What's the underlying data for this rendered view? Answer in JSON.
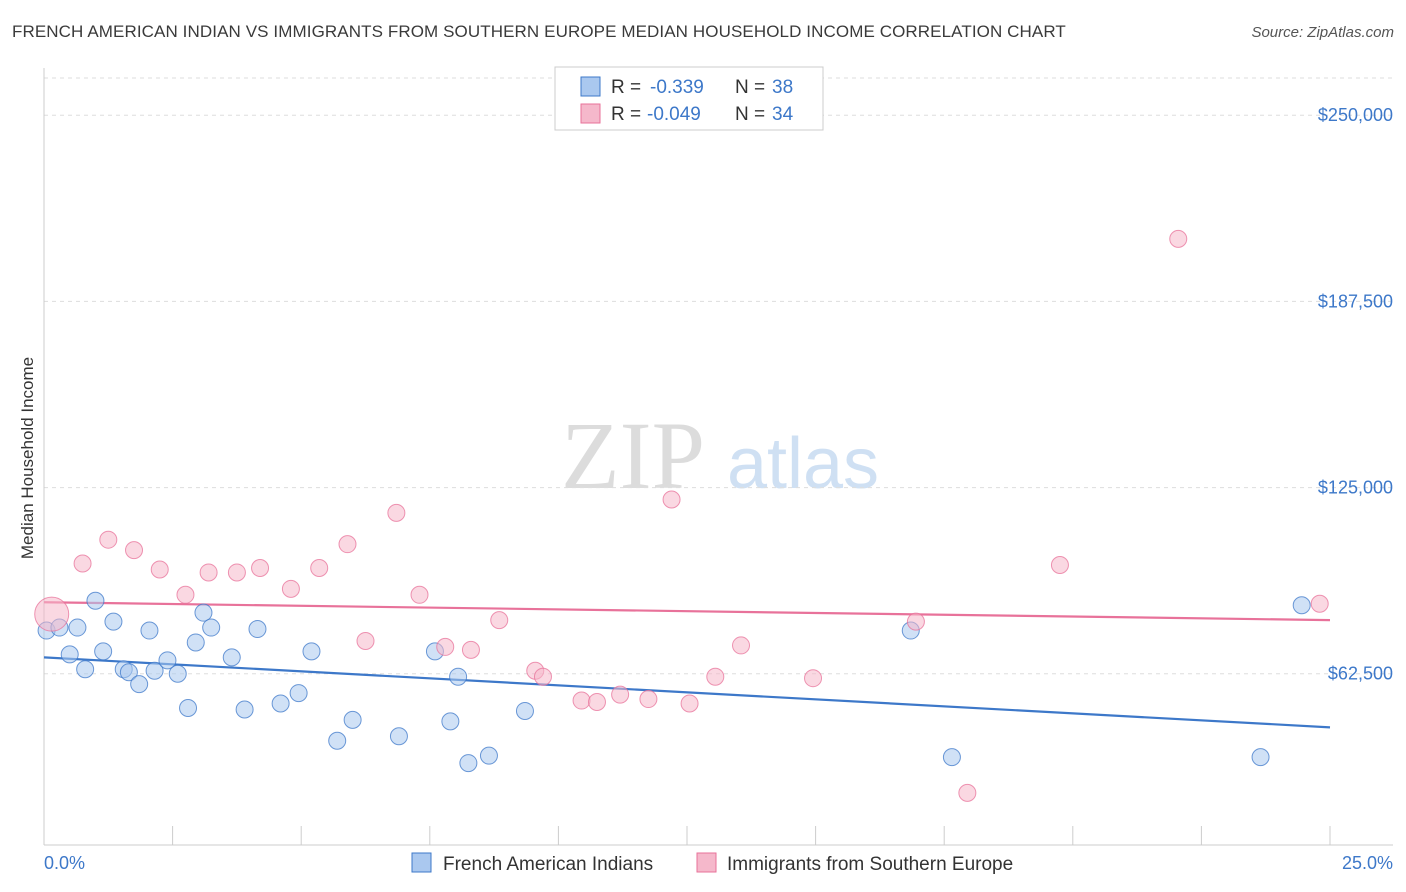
{
  "title": "FRENCH AMERICAN INDIAN VS IMMIGRANTS FROM SOUTHERN EUROPE MEDIAN HOUSEHOLD INCOME CORRELATION CHART",
  "source": "Source: ZipAtlas.com",
  "colors": {
    "blue": "#3d78c9",
    "blue_fill": "#aac8ef",
    "pink": "#e8729a",
    "pink_fill": "#f5b8cb",
    "grid": "#dddddd"
  },
  "chart_data": {
    "type": "scatter",
    "title": "FRENCH AMERICAN INDIAN VS IMMIGRANTS FROM SOUTHERN EUROPE MEDIAN HOUSEHOLD INCOME CORRELATION CHART",
    "xlabel": "",
    "ylabel": "Median Household Income",
    "xlim": [
      0,
      25
    ],
    "ylim": [
      5000,
      262500
    ],
    "x_tick_labels": [
      "0.0%",
      "25.0%"
    ],
    "y_ticks": [
      62500,
      125000,
      187500,
      250000
    ],
    "y_tick_labels": [
      "$62,500",
      "$125,000",
      "$187,500",
      "$250,000"
    ],
    "legend": [
      {
        "r_label": "R =",
        "r_value": "-0.339",
        "n_label": "N =",
        "n_value": "38"
      },
      {
        "r_label": "R =",
        "r_value": "-0.049",
        "n_label": "N =",
        "n_value": "34"
      }
    ],
    "watermark": {
      "zip": "ZIP",
      "atlas": "atlas"
    },
    "series": [
      {
        "name": "French American Indians",
        "color": "#3d78c9",
        "trend": {
          "x": [
            0,
            25
          ],
          "y": [
            68000,
            44500
          ]
        },
        "points": [
          {
            "x": 0.05,
            "y": 77000
          },
          {
            "x": 0.3,
            "y": 78000
          },
          {
            "x": 0.5,
            "y": 69000
          },
          {
            "x": 0.65,
            "y": 78000
          },
          {
            "x": 0.8,
            "y": 64000
          },
          {
            "x": 1.0,
            "y": 87000
          },
          {
            "x": 1.15,
            "y": 70000
          },
          {
            "x": 1.35,
            "y": 80000
          },
          {
            "x": 1.55,
            "y": 64000
          },
          {
            "x": 1.65,
            "y": 63000
          },
          {
            "x": 1.85,
            "y": 59000
          },
          {
            "x": 2.05,
            "y": 77000
          },
          {
            "x": 2.15,
            "y": 63500
          },
          {
            "x": 2.4,
            "y": 67000
          },
          {
            "x": 2.6,
            "y": 62500
          },
          {
            "x": 2.8,
            "y": 51000
          },
          {
            "x": 2.95,
            "y": 73000
          },
          {
            "x": 3.1,
            "y": 83000
          },
          {
            "x": 3.25,
            "y": 78000
          },
          {
            "x": 3.65,
            "y": 68000
          },
          {
            "x": 3.9,
            "y": 50500
          },
          {
            "x": 4.15,
            "y": 77500
          },
          {
            "x": 4.6,
            "y": 52500
          },
          {
            "x": 4.95,
            "y": 56000
          },
          {
            "x": 5.2,
            "y": 70000
          },
          {
            "x": 5.7,
            "y": 40000
          },
          {
            "x": 6.0,
            "y": 47000
          },
          {
            "x": 6.9,
            "y": 41500
          },
          {
            "x": 7.6,
            "y": 70000
          },
          {
            "x": 7.9,
            "y": 46500
          },
          {
            "x": 8.05,
            "y": 61500
          },
          {
            "x": 8.25,
            "y": 32500
          },
          {
            "x": 8.65,
            "y": 35000
          },
          {
            "x": 9.35,
            "y": 50000
          },
          {
            "x": 16.85,
            "y": 77000
          },
          {
            "x": 17.65,
            "y": 34500
          },
          {
            "x": 23.65,
            "y": 34500
          },
          {
            "x": 24.45,
            "y": 85500
          }
        ]
      },
      {
        "name": "Immigrants from Southern Europe",
        "color": "#e8729a",
        "trend": {
          "x": [
            0,
            25
          ],
          "y": [
            86500,
            80500
          ]
        },
        "points": [
          {
            "x": 0.15,
            "y": 82500
          },
          {
            "x": 0.75,
            "y": 99500
          },
          {
            "x": 1.25,
            "y": 107500
          },
          {
            "x": 1.75,
            "y": 104000
          },
          {
            "x": 2.25,
            "y": 97500
          },
          {
            "x": 2.75,
            "y": 89000
          },
          {
            "x": 3.2,
            "y": 96500
          },
          {
            "x": 3.75,
            "y": 96500
          },
          {
            "x": 4.2,
            "y": 98000
          },
          {
            "x": 4.8,
            "y": 91000
          },
          {
            "x": 5.35,
            "y": 98000
          },
          {
            "x": 5.9,
            "y": 106000
          },
          {
            "x": 6.25,
            "y": 73500
          },
          {
            "x": 6.85,
            "y": 116500
          },
          {
            "x": 7.3,
            "y": 89000
          },
          {
            "x": 7.8,
            "y": 71500
          },
          {
            "x": 8.3,
            "y": 70500
          },
          {
            "x": 8.85,
            "y": 80500
          },
          {
            "x": 9.55,
            "y": 63500
          },
          {
            "x": 9.7,
            "y": 61500
          },
          {
            "x": 10.45,
            "y": 53500
          },
          {
            "x": 10.75,
            "y": 53000
          },
          {
            "x": 11.2,
            "y": 55500
          },
          {
            "x": 11.75,
            "y": 54000
          },
          {
            "x": 12.2,
            "y": 121000
          },
          {
            "x": 12.55,
            "y": 52500
          },
          {
            "x": 13.05,
            "y": 61500
          },
          {
            "x": 13.55,
            "y": 72000
          },
          {
            "x": 14.95,
            "y": 61000
          },
          {
            "x": 16.95,
            "y": 80000
          },
          {
            "x": 17.95,
            "y": 22500
          },
          {
            "x": 19.75,
            "y": 99000
          },
          {
            "x": 22.05,
            "y": 208500
          },
          {
            "x": 24.8,
            "y": 86000
          }
        ]
      }
    ]
  }
}
